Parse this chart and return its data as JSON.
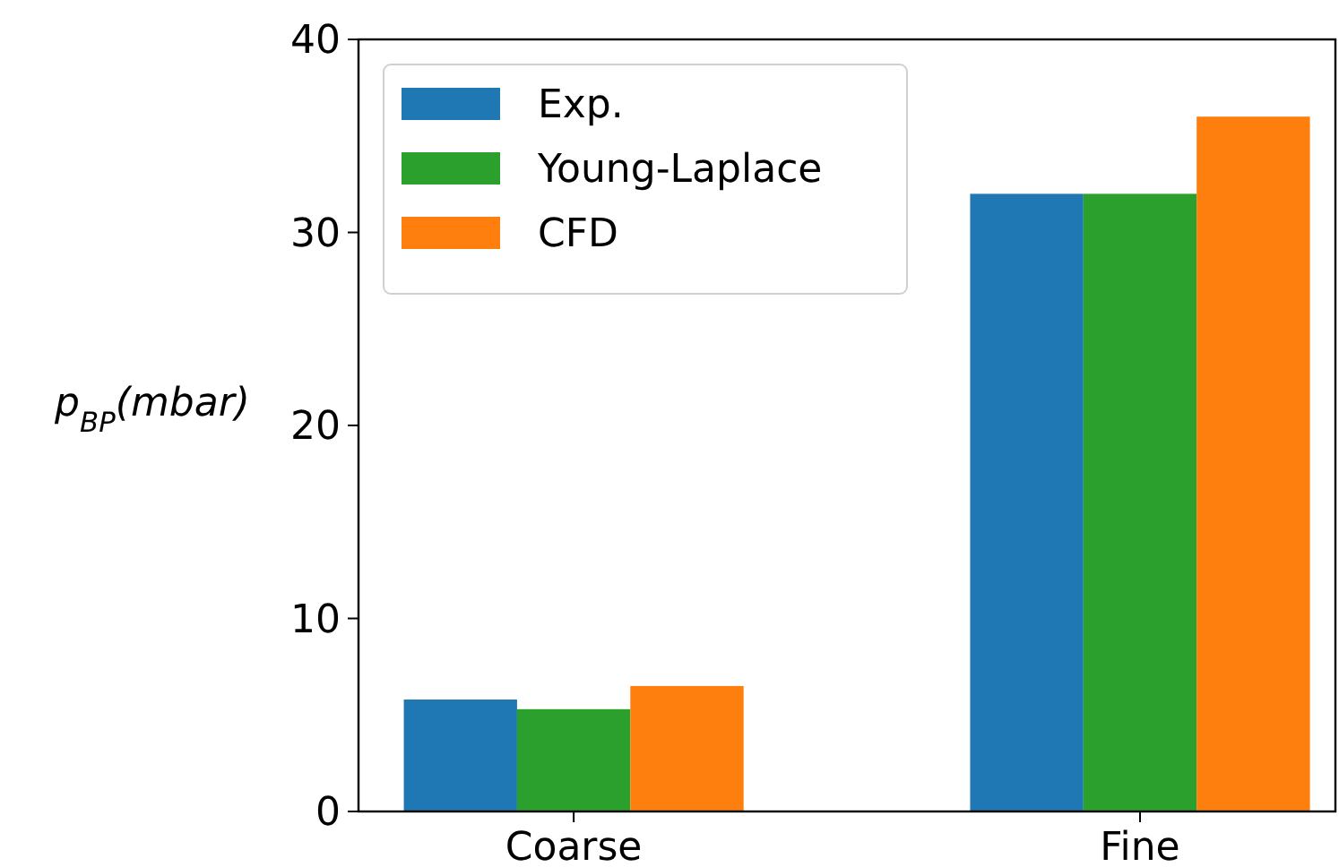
{
  "chart_data": {
    "type": "bar",
    "ylabel": "p$_{BP}$(mbar)",
    "categories": [
      "Coarse",
      "Fine"
    ],
    "series": [
      {
        "name": "Exp.",
        "color": "#1f77b4",
        "values": [
          5.8,
          32
        ]
      },
      {
        "name": "Young-Laplace",
        "color": "#2ca02c",
        "values": [
          5.3,
          32
        ]
      },
      {
        "name": "CFD",
        "color": "#ff7f0e",
        "values": [
          6.5,
          36
        ]
      }
    ],
    "ylim": [
      0,
      40
    ],
    "yticks": [
      0,
      10,
      20,
      30,
      40
    ],
    "grid": false,
    "legend": "top left"
  }
}
